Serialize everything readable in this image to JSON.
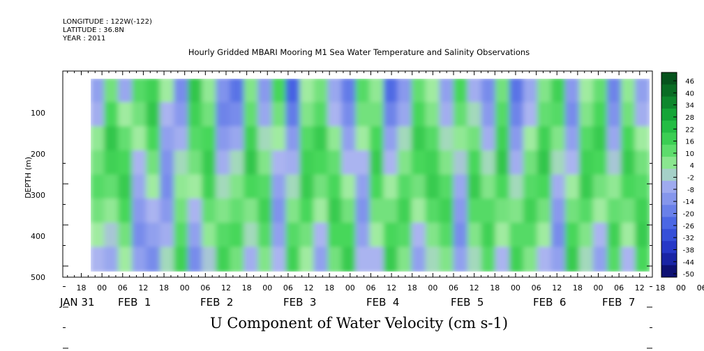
{
  "header": {
    "longitude": "LONGITUDE : 122W(-122)",
    "latitude": "LATITUDE : 36.8N",
    "year": "YEAR : 2011"
  },
  "chart_data": {
    "type": "heatmap",
    "title": "Hourly Gridded MBARI Mooring M1 Sea Water Temperature and Salinity Observations",
    "xlabel": "U Component of Water Velocity (cm s-1)",
    "ylabel": "DEPTH (m)",
    "ylim": [
      0,
      500
    ],
    "y_reversed": true,
    "y_ticks": [
      100,
      200,
      300,
      400,
      500
    ],
    "data_depth_range": [
      20,
      490
    ],
    "hour_ticks": [
      "18",
      "00",
      "06",
      "12",
      "18",
      "00",
      "06",
      "12",
      "18",
      "00",
      "06",
      "12",
      "18",
      "00",
      "06",
      "12",
      "18",
      "00",
      "06",
      "12",
      "18",
      "00",
      "06",
      "12",
      "18",
      "00",
      "06",
      "12",
      "18",
      "00",
      "06",
      "12"
    ],
    "day_labels": [
      "JAN 31",
      "FEB  1",
      "FEB  2",
      "FEB  3",
      "FEB  4",
      "FEB  5",
      "FEB  6",
      "FEB  7"
    ],
    "colorbar": {
      "labels": [
        "46",
        "40",
        "34",
        "28",
        "22",
        "16",
        "10",
        "4",
        "-2",
        "-8",
        "-14",
        "-20",
        "-26",
        "-32",
        "-38",
        "-44",
        "-50"
      ],
      "range": [
        -50,
        52
      ]
    },
    "field": {
      "time_hours": [
        0,
        12,
        24,
        36,
        48,
        60,
        72,
        84,
        96,
        108,
        120,
        132,
        144,
        156,
        168,
        180
      ],
      "description_note": "",
      "values": [
        [
          -8,
          10,
          -6,
          14,
          18,
          4,
          -14,
          22,
          6,
          -12,
          -20,
          8,
          -10,
          16,
          -24,
          4,
          10,
          -6,
          -18,
          14,
          6,
          -22,
          -10,
          12,
          4,
          -8,
          16,
          -4,
          -14,
          10,
          -20,
          -6,
          8,
          18,
          -10,
          4,
          12,
          -16,
          6,
          -8
        ],
        [
          -4,
          16,
          4,
          10,
          22,
          -2,
          -10,
          18,
          10,
          -16,
          -14,
          12,
          -6,
          10,
          -18,
          8,
          14,
          -2,
          -14,
          10,
          10,
          -16,
          -6,
          16,
          8,
          -4,
          12,
          2,
          -10,
          14,
          -16,
          -2,
          12,
          14,
          -14,
          8,
          16,
          -12,
          10,
          -4
        ],
        [
          6,
          22,
          12,
          4,
          16,
          -8,
          -4,
          14,
          16,
          -10,
          -6,
          18,
          2,
          4,
          -10,
          14,
          20,
          6,
          -8,
          4,
          16,
          -8,
          2,
          20,
          14,
          2,
          6,
          10,
          -4,
          18,
          -10,
          4,
          18,
          8,
          -8,
          14,
          20,
          -6,
          16,
          4
        ],
        [
          10,
          18,
          16,
          -2,
          10,
          -12,
          2,
          10,
          20,
          -4,
          2,
          22,
          8,
          -2,
          -4,
          18,
          16,
          12,
          -2,
          -2,
          20,
          -2,
          8,
          16,
          18,
          8,
          0,
          16,
          2,
          22,
          -4,
          10,
          22,
          2,
          -2,
          18,
          16,
          0,
          20,
          10
        ],
        [
          14,
          12,
          20,
          -6,
          4,
          -14,
          6,
          4,
          18,
          2,
          8,
          16,
          14,
          -8,
          2,
          20,
          10,
          16,
          4,
          -8,
          16,
          4,
          14,
          10,
          20,
          14,
          -6,
          20,
          8,
          16,
          2,
          14,
          16,
          -4,
          4,
          20,
          10,
          6,
          16,
          14
        ],
        [
          10,
          6,
          16,
          -10,
          -2,
          -10,
          10,
          -2,
          12,
          8,
          12,
          8,
          18,
          -12,
          8,
          16,
          4,
          20,
          10,
          -12,
          10,
          10,
          18,
          4,
          14,
          18,
          -10,
          14,
          14,
          10,
          8,
          18,
          10,
          -10,
          10,
          14,
          4,
          12,
          10,
          18
        ],
        [
          4,
          0,
          10,
          -14,
          -8,
          -4,
          14,
          -8,
          6,
          14,
          16,
          2,
          14,
          -8,
          14,
          10,
          -2,
          16,
          16,
          -8,
          4,
          16,
          14,
          -2,
          8,
          14,
          -14,
          8,
          18,
          4,
          14,
          14,
          4,
          -14,
          16,
          8,
          -2,
          18,
          4,
          20
        ],
        [
          -2,
          -6,
          4,
          -8,
          -14,
          2,
          18,
          -14,
          0,
          18,
          10,
          -4,
          8,
          -2,
          18,
          4,
          -8,
          10,
          20,
          -2,
          -2,
          20,
          8,
          -8,
          2,
          8,
          -8,
          2,
          14,
          -2,
          18,
          8,
          -2,
          -8,
          20,
          2,
          -8,
          14,
          -2,
          16
        ]
      ]
    }
  }
}
